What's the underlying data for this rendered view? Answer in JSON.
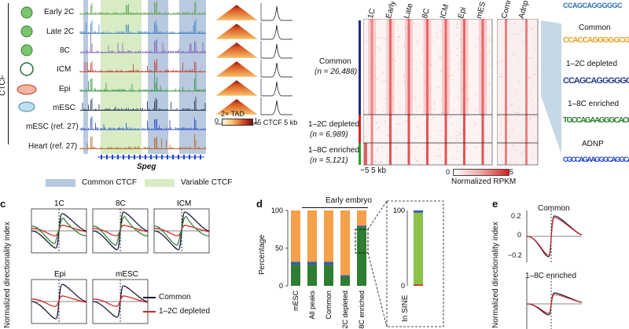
{
  "panel_a": {
    "side_label": "CTCF",
    "stages": [
      "Early 2C",
      "Late 2C",
      "8C",
      "ICM",
      "Epi",
      "mESC",
      "mESC (ref. 27)",
      "Heart (ref. 27)"
    ],
    "track_colors": [
      "#5aa04a",
      "#3f7fc2",
      "#7a5fb0",
      "#c0392b",
      "#2f8f3f",
      "#1a2a4a",
      "#1f46c8",
      "#b5651d"
    ],
    "gene_label": "Speg",
    "tad_label": "2× TAD",
    "scale_min": "0",
    "scale_max": "1",
    "profile_axis": "−5  CTCF  5 kb",
    "legend": {
      "common": "Common CTCF",
      "variable": "Variable CTCF"
    },
    "legend_colors": {
      "common": "#b9c9df",
      "variable": "#d7ecc4"
    }
  },
  "panel_b": {
    "columns": [
      "1C",
      "Early 2C",
      "Late 2C",
      "8C",
      "ICM",
      "Epi",
      "mESC"
    ],
    "columns2": [
      "Common",
      "Adnp"
    ],
    "groups": [
      {
        "label": "Common",
        "n": "(n = 26,488)",
        "color": "#1f2a7a"
      },
      {
        "label": "1–2C depleted",
        "n": "(n = 6,989)",
        "color": "#d62728"
      },
      {
        "label": "1–8C enriched",
        "n": "(n = 5,121)",
        "color": "#2ca02c"
      }
    ],
    "x_axis": "−5      5 kb",
    "colorbar_min": "0",
    "colorbar_max": "5",
    "colorbar_label": "Normalized RPKM"
  },
  "motifs": {
    "labels": [
      "Common",
      "1–2C depleted",
      "1–8C enriched",
      "ADNP"
    ],
    "sequences": [
      "CCAGCAGGGGGC",
      "CCACCAGGGGGCGC",
      "CCAGCAGGGGGC",
      "TGCCAGAAGGGCACCAGAT",
      "CGCCAGAAGGGCAGGCAGAT"
    ]
  },
  "panel_c": {
    "letter": "c",
    "y_label": "Normalized directionality index",
    "subplots": [
      "1C",
      "8C",
      "ICM",
      "Epi",
      "mESC"
    ],
    "legend": [
      {
        "label": "Common",
        "color": "#1a1a3a"
      },
      {
        "label": "1–2C depleted",
        "color": "#d62728"
      }
    ]
  },
  "panel_d": {
    "letter": "d",
    "header": "Early embryo",
    "y_label": "Percentage",
    "zoom_label": "In SINE",
    "chart_data": {
      "type": "bar",
      "stacked": true,
      "categories": [
        "mESC",
        "All peaks",
        "Common",
        "1–2C depleted",
        "1–8C enriched"
      ],
      "series": [
        {
          "name": "Green",
          "color": "#2e7d32",
          "values": [
            28,
            28,
            28,
            12,
            78
          ]
        },
        {
          "name": "Blue",
          "color": "#3b5bab",
          "values": [
            4,
            4,
            4,
            2,
            2
          ]
        },
        {
          "name": "Orange",
          "color": "#f5a04a",
          "values": [
            68,
            68,
            68,
            86,
            20
          ]
        }
      ],
      "ylim": [
        0,
        100
      ],
      "yticks": [
        "0",
        "50",
        "100"
      ]
    },
    "sine_chart": {
      "type": "bar",
      "categories": [
        "In SINE"
      ],
      "series": [
        {
          "name": "Red",
          "color": "#c0392b",
          "values": [
            2
          ]
        },
        {
          "name": "Light green",
          "color": "#8bc34a",
          "values": [
            95
          ]
        },
        {
          "name": "Blue",
          "color": "#3b5bab",
          "values": [
            3
          ]
        }
      ],
      "yticks": [
        "0",
        "100"
      ]
    }
  },
  "panel_e": {
    "letter": "e",
    "y_label": "Normalized directionality index",
    "subplots": [
      "Common",
      "1–8C enriched"
    ],
    "yticks": [
      "0.2",
      "0",
      "−0.2"
    ]
  }
}
